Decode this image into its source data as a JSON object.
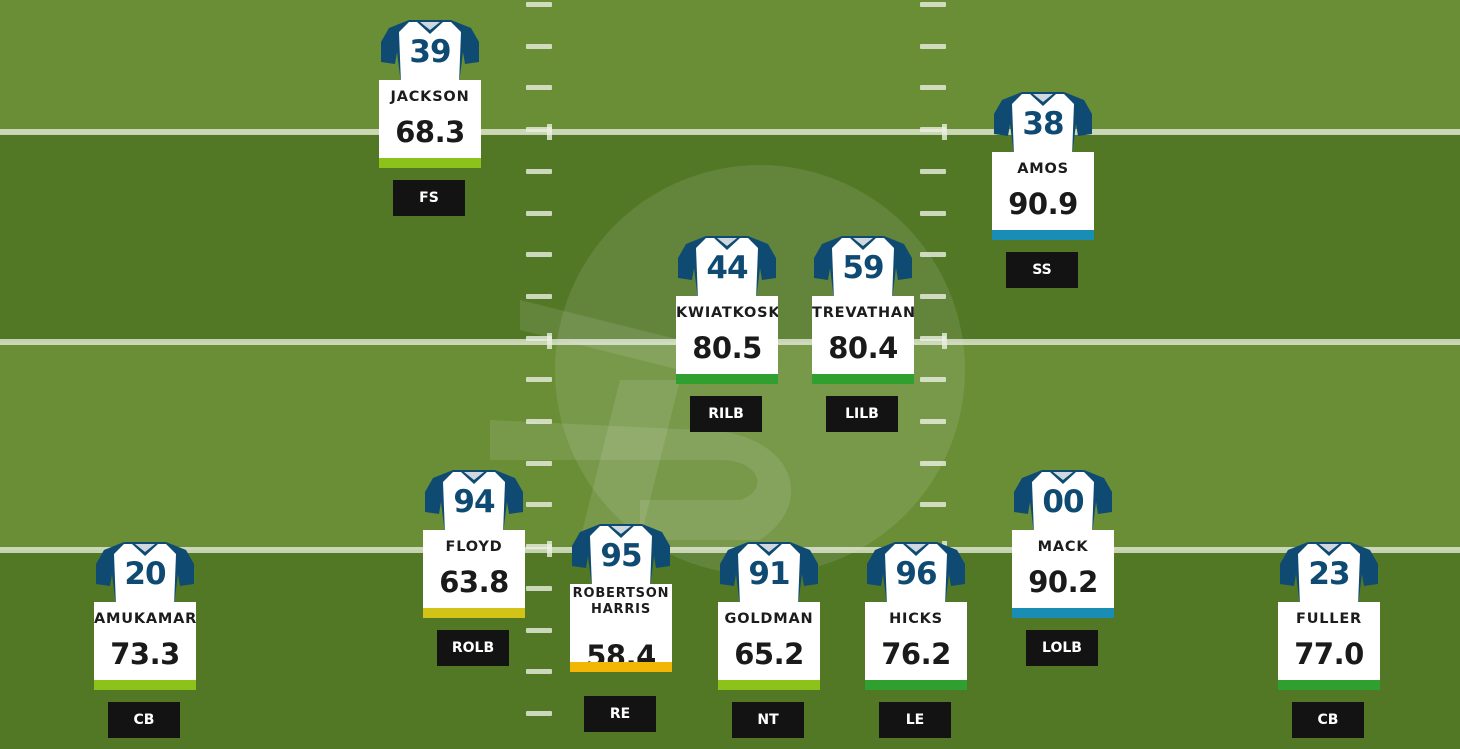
{
  "field": {
    "colors": {
      "light_stripe": "#698e36",
      "dark_stripe": "#527825",
      "line": "#e6ecdc"
    },
    "logo": "faded-watermark-logo"
  },
  "jersey_colors": {
    "body": "#ffffff",
    "sleeve": "#0f4a73",
    "number": "#0f4a73"
  },
  "grade_colors": {
    "green": "#2f9f2f",
    "lime": "#8cc21a",
    "yellow": "#d4c317",
    "gold": "#f2b705",
    "blue": "#1a8db4"
  },
  "players": [
    {
      "number": "39",
      "name": "JACKSON",
      "grade": "68.3",
      "position": "FS",
      "bar": "lime"
    },
    {
      "number": "38",
      "name": "AMOS",
      "grade": "90.9",
      "position": "SS",
      "bar": "blue"
    },
    {
      "number": "44",
      "name": "KWIATKOSKI",
      "grade": "80.5",
      "position": "RILB",
      "bar": "green"
    },
    {
      "number": "59",
      "name": "TREVATHAN",
      "grade": "80.4",
      "position": "LILB",
      "bar": "green"
    },
    {
      "number": "94",
      "name": "FLOYD",
      "grade": "63.8",
      "position": "ROLB",
      "bar": "yellow"
    },
    {
      "number": "00",
      "name": "MACK",
      "grade": "90.2",
      "position": "LOLB",
      "bar": "blue"
    },
    {
      "number": "20",
      "name": "AMUKAMARA",
      "grade": "73.3",
      "position": "CB",
      "bar": "lime"
    },
    {
      "number": "95",
      "name": "ROBERTSON HARRIS",
      "grade": "58.4",
      "position": "RE",
      "bar": "gold"
    },
    {
      "number": "91",
      "name": "GOLDMAN",
      "grade": "65.2",
      "position": "NT",
      "bar": "lime"
    },
    {
      "number": "96",
      "name": "HICKS",
      "grade": "76.2",
      "position": "LE",
      "bar": "green"
    },
    {
      "number": "23",
      "name": "FULLER",
      "grade": "77.0",
      "position": "CB",
      "bar": "green"
    }
  ]
}
